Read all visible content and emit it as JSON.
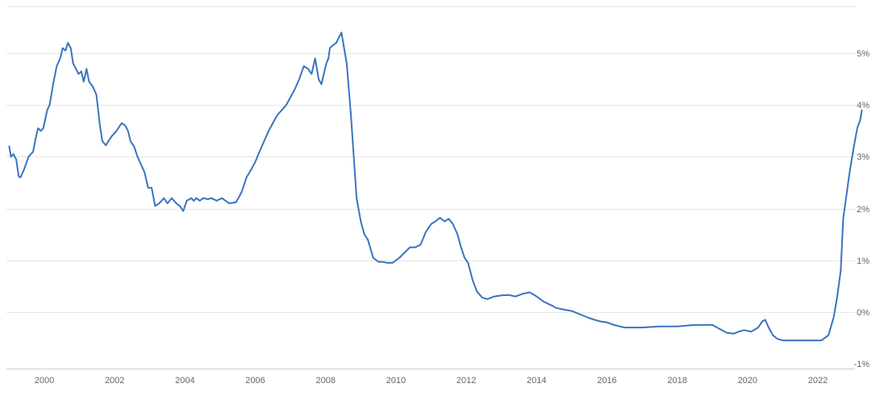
{
  "chart_data": {
    "type": "line",
    "title": "",
    "xlabel": "",
    "ylabel": "",
    "xlim": [
      1999.0,
      2023.25
    ],
    "ylim": [
      -1,
      6
    ],
    "grid": true,
    "legend": "none",
    "x_ticks": [
      2000,
      2002,
      2004,
      2006,
      2008,
      2010,
      2012,
      2014,
      2016,
      2018,
      2020,
      2022
    ],
    "x_tick_labels": [
      "2000",
      "2002",
      "2004",
      "2006",
      "2008",
      "2010",
      "2012",
      "2014",
      "2016",
      "2018",
      "2020",
      "2022"
    ],
    "y_ticks": [
      -1,
      0,
      1,
      2,
      3,
      4,
      5
    ],
    "y_tick_labels": [
      "-1%",
      "0%",
      "1%",
      "2%",
      "3%",
      "4%",
      "5%"
    ],
    "colors": {
      "line": "#3a73c0",
      "grid": "#e6e6e6",
      "axis": "#cccccc",
      "tick_text": "#666666"
    },
    "series": [
      {
        "x": [
          1999.0,
          1999.05,
          1999.12,
          1999.2,
          1999.27,
          1999.32,
          1999.42,
          1999.55,
          1999.68,
          1999.75,
          1999.82,
          1999.9,
          1999.97,
          2000.08,
          2000.15,
          2000.25,
          2000.35,
          2000.45,
          2000.52,
          2000.6,
          2000.67,
          2000.75,
          2000.82,
          2000.9,
          2000.97,
          2001.05,
          2001.12,
          2001.2,
          2001.27,
          2001.33,
          2001.38,
          2001.48,
          2001.58,
          2001.65,
          2001.75,
          2001.82,
          2001.92,
          2002.05,
          2002.2,
          2002.3,
          2002.38,
          2002.45,
          2002.55,
          2002.65,
          2002.75,
          2002.85,
          2002.95,
          2003.05,
          2003.15,
          2003.27,
          2003.4,
          2003.5,
          2003.62,
          2003.75,
          2003.85,
          2003.95,
          2004.05,
          2004.18,
          2004.25,
          2004.32,
          2004.42,
          2004.52,
          2004.65,
          2004.75,
          2004.9,
          2005.05,
          2005.25,
          2005.45,
          2005.6,
          2005.75,
          2005.88,
          2006.0,
          2006.12,
          2006.25,
          2006.38,
          2006.5,
          2006.62,
          2006.75,
          2006.88,
          2007.0,
          2007.12,
          2007.25,
          2007.38,
          2007.5,
          2007.6,
          2007.7,
          2007.8,
          2007.88,
          2007.95,
          2008.02,
          2008.08,
          2008.12,
          2008.2,
          2008.3,
          2008.45,
          2008.6,
          2008.72,
          2008.8,
          2008.88,
          2009.0,
          2009.1,
          2009.2,
          2009.35,
          2009.5,
          2009.62,
          2009.75,
          2009.9,
          2010.1,
          2010.25,
          2010.4,
          2010.55,
          2010.7,
          2010.85,
          2011.0,
          2011.12,
          2011.25,
          2011.38,
          2011.5,
          2011.62,
          2011.75,
          2011.85,
          2011.95,
          2012.05,
          2012.18,
          2012.3,
          2012.45,
          2012.6,
          2012.8,
          2013.0,
          2013.2,
          2013.4,
          2013.6,
          2013.8,
          2014.0,
          2014.2,
          2014.35,
          2014.45,
          2014.55,
          2014.75,
          2015.0,
          2015.25,
          2015.5,
          2015.8,
          2016.0,
          2016.2,
          2016.5,
          2017.0,
          2017.5,
          2018.0,
          2018.5,
          2019.0,
          2019.4,
          2019.6,
          2019.75,
          2019.9,
          2020.1,
          2020.3,
          2020.42,
          2020.5,
          2020.6,
          2020.72,
          2020.85,
          2021.0,
          2021.3,
          2021.6,
          2021.9,
          2022.1,
          2022.3,
          2022.45,
          2022.55,
          2022.65,
          2022.72,
          2022.8,
          2022.88,
          2022.95,
          2023.05,
          2023.12,
          2023.2,
          2023.25
        ],
        "values": [
          3.2,
          3.0,
          3.05,
          2.95,
          2.62,
          2.6,
          2.75,
          3.0,
          3.1,
          3.35,
          3.55,
          3.5,
          3.55,
          3.9,
          4.0,
          4.4,
          4.75,
          4.9,
          5.1,
          5.05,
          5.2,
          5.1,
          4.8,
          4.7,
          4.6,
          4.65,
          4.45,
          4.7,
          4.45,
          4.4,
          4.35,
          4.2,
          3.6,
          3.3,
          3.22,
          3.3,
          3.4,
          3.5,
          3.65,
          3.6,
          3.5,
          3.3,
          3.2,
          3.0,
          2.85,
          2.7,
          2.4,
          2.4,
          2.05,
          2.1,
          2.2,
          2.1,
          2.2,
          2.1,
          2.05,
          1.95,
          2.15,
          2.2,
          2.15,
          2.2,
          2.15,
          2.2,
          2.18,
          2.2,
          2.15,
          2.2,
          2.1,
          2.12,
          2.3,
          2.6,
          2.75,
          2.9,
          3.1,
          3.3,
          3.5,
          3.65,
          3.8,
          3.9,
          4.0,
          4.15,
          4.3,
          4.5,
          4.75,
          4.7,
          4.6,
          4.9,
          4.5,
          4.4,
          4.6,
          4.8,
          4.9,
          5.1,
          5.15,
          5.2,
          5.4,
          4.8,
          3.8,
          3.0,
          2.2,
          1.75,
          1.5,
          1.4,
          1.05,
          0.97,
          0.97,
          0.95,
          0.95,
          1.05,
          1.15,
          1.25,
          1.25,
          1.3,
          1.55,
          1.7,
          1.75,
          1.82,
          1.75,
          1.8,
          1.7,
          1.5,
          1.25,
          1.05,
          0.95,
          0.62,
          0.4,
          0.28,
          0.25,
          0.3,
          0.32,
          0.33,
          0.3,
          0.35,
          0.38,
          0.3,
          0.2,
          0.15,
          0.12,
          0.08,
          0.05,
          0.02,
          -0.05,
          -0.12,
          -0.18,
          -0.2,
          -0.25,
          -0.3,
          -0.3,
          -0.28,
          -0.28,
          -0.25,
          -0.25,
          -0.4,
          -0.42,
          -0.38,
          -0.35,
          -0.38,
          -0.3,
          -0.18,
          -0.15,
          -0.3,
          -0.45,
          -0.52,
          -0.55,
          -0.55,
          -0.55,
          -0.55,
          -0.55,
          -0.45,
          -0.1,
          0.3,
          0.8,
          1.8,
          2.2,
          2.6,
          2.9,
          3.3,
          3.55,
          3.7,
          3.9
        ]
      }
    ]
  }
}
